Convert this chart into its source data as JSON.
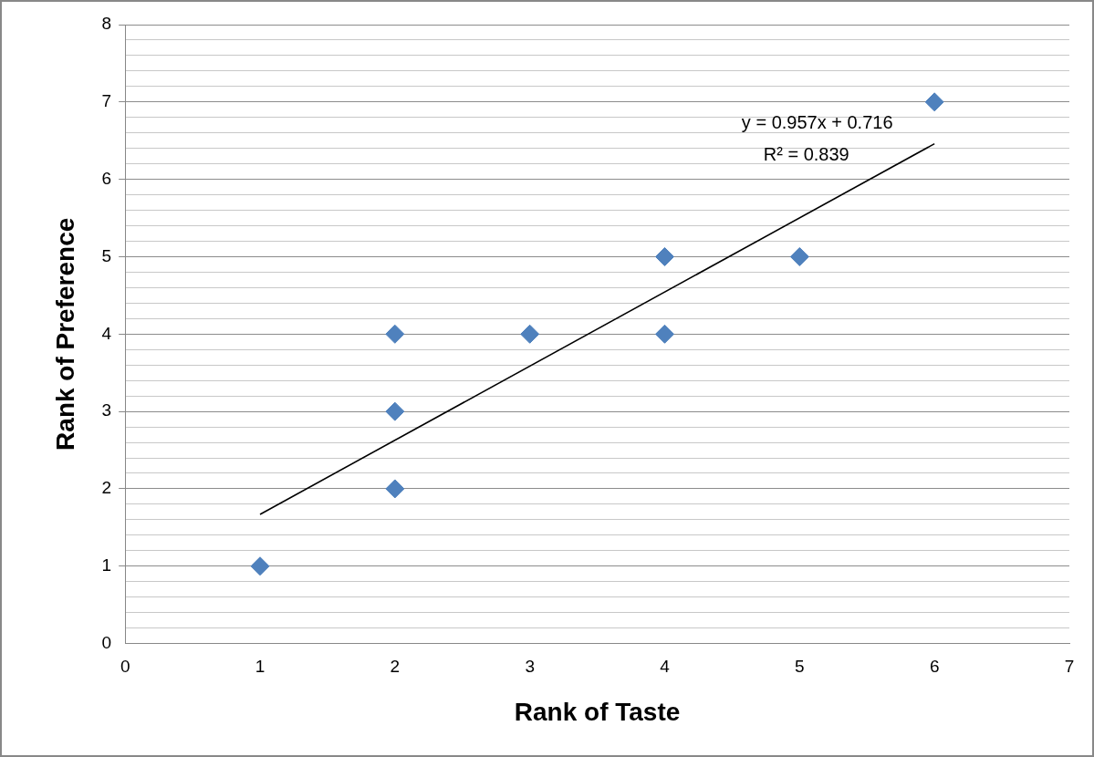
{
  "chart_data": {
    "type": "scatter",
    "xlabel": "Rank of Taste",
    "ylabel": "Rank of Preference",
    "series": [
      {
        "color": "#4f81bd",
        "marker": "diamond",
        "x": [
          1,
          2,
          2,
          2,
          3,
          4,
          4,
          5,
          6
        ],
        "values": [
          1,
          2,
          3,
          4,
          4,
          4,
          5,
          5,
          7
        ]
      },
      {
        "type": "line",
        "color": "#000000",
        "marker": "none",
        "line_style": "solid",
        "x": [
          1,
          6
        ],
        "values": [
          1.67,
          6.46
        ]
      }
    ],
    "annotations": [
      "y = 0.957x + 0.716",
      "R² = 0.839"
    ],
    "xlim": [
      0,
      7
    ],
    "xticks": [
      0,
      1,
      2,
      3,
      4,
      5,
      6,
      7
    ],
    "ylim": [
      0,
      8
    ],
    "yticks": [
      0,
      {
        "value": 0.2,
        "label": null
      },
      {
        "value": 0.4,
        "label": null
      },
      {
        "value": 0.6,
        "label": null
      },
      {
        "value": 0.8,
        "label": null
      },
      1,
      {
        "value": 1.2,
        "label": null
      },
      {
        "value": 1.4,
        "label": null
      },
      {
        "value": 1.6,
        "label": null
      },
      {
        "value": 1.8,
        "label": null
      },
      2,
      {
        "value": 2.2,
        "label": null
      },
      {
        "value": 2.4,
        "label": null
      },
      {
        "value": 2.6,
        "label": null
      },
      {
        "value": 2.8,
        "label": null
      },
      3,
      {
        "value": 3.2,
        "label": null
      },
      {
        "value": 3.4,
        "label": null
      },
      {
        "value": 3.6,
        "label": null
      },
      {
        "value": 3.8,
        "label": null
      },
      4,
      {
        "value": 4.2,
        "label": null
      },
      {
        "value": 4.4,
        "label": null
      },
      {
        "value": 4.6,
        "label": null
      },
      {
        "value": 4.8,
        "label": null
      },
      5,
      {
        "value": 5.2,
        "label": null
      },
      {
        "value": 5.4,
        "label": null
      },
      {
        "value": 5.6,
        "label": null
      },
      {
        "value": 5.8,
        "label": null
      },
      6,
      {
        "value": 6.2,
        "label": null
      },
      {
        "value": 6.4,
        "label": null
      },
      {
        "value": 6.6,
        "label": null
      },
      {
        "value": 6.8,
        "label": null
      },
      7,
      {
        "value": 7.2,
        "label": null
      },
      {
        "value": 7.4,
        "label": null
      },
      {
        "value": 7.6,
        "label": null
      },
      {
        "value": 7.8,
        "label": null
      },
      8
    ],
    "grid": "y",
    "legend": false
  }
}
